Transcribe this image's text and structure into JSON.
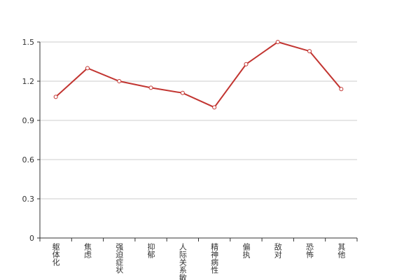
{
  "chart_data": {
    "type": "line",
    "categories": [
      "躯体化",
      "焦虑",
      "强迫症状",
      "抑郁",
      "人际关系敏感",
      "精神病性",
      "偏执",
      "敌对",
      "恐怖",
      "其他"
    ],
    "series": [
      {
        "color": "#c23531",
        "values": [
          1.08,
          1.3,
          1.2,
          1.15,
          1.11,
          1.0,
          1.33,
          1.5,
          1.43,
          1.14
        ]
      }
    ],
    "ylim": [
      0,
      1.5
    ],
    "yticks": [
      0,
      0.3,
      0.6,
      0.9,
      1.2,
      1.5
    ],
    "grid": true
  }
}
